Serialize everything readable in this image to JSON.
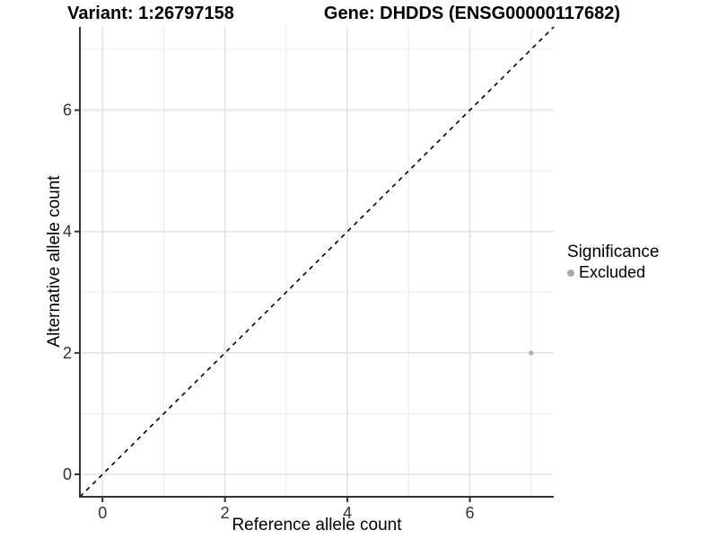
{
  "header": {
    "variant_title": "Variant: 1:26797158",
    "gene_title": "Gene: DHDDS (ENSG00000117682)"
  },
  "chart_data": {
    "type": "scatter",
    "xlabel": "Reference allele count",
    "ylabel": "Alternative allele count",
    "xticks": [
      0,
      2,
      4,
      6
    ],
    "yticks": [
      0,
      2,
      4,
      6
    ],
    "xlim": [
      -0.37,
      7.37
    ],
    "ylim": [
      -0.37,
      7.37
    ],
    "grid": true,
    "grid_every": 1,
    "identity_line": {
      "show": true,
      "style": "dashed",
      "color": "#000000"
    },
    "series": [
      {
        "name": "Excluded",
        "color": "#b0b0b0",
        "points": [
          {
            "x": 7,
            "y": 2
          }
        ]
      }
    ],
    "legend": {
      "title": "Significance",
      "position": "right",
      "items": [
        {
          "label": "Excluded",
          "color": "#aaaaaa"
        }
      ]
    },
    "colors": {
      "grid_major": "#e3e3e3",
      "grid_minor": "#efefef",
      "axis_line": "#333333",
      "tick_mark": "#333333",
      "tick_text": "#333333"
    }
  }
}
